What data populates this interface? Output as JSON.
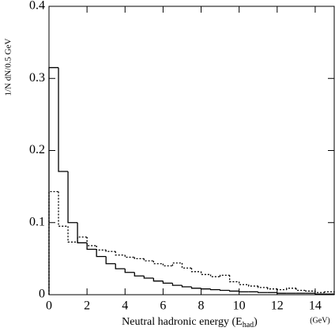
{
  "chart_data": {
    "type": "histogram",
    "y_label": "1/N dN/0.5 GeV",
    "x_label": "Neutral hadronic energy (E",
    "x_label_sub": "had",
    "x_label_end": ")",
    "x_unit": "(GeV)",
    "bins": [
      0,
      0.5,
      1,
      1.5,
      2,
      2.5,
      3,
      3.5,
      4,
      4.5,
      5,
      5.5,
      6,
      6.5,
      7,
      7.5,
      8,
      8.5,
      9,
      9.5,
      10,
      10.5,
      11,
      11.5,
      12,
      12.5,
      13,
      13.5,
      14,
      14.5,
      15
    ],
    "series": [
      {
        "color": "#000000",
        "style": "solid",
        "values": [
          0.315,
          0.171,
          0.1,
          0.072,
          0.063,
          0.053,
          0.043,
          0.036,
          0.031,
          0.026,
          0.023,
          0.019,
          0.016,
          0.013,
          0.011,
          0.009,
          0.008,
          0.007,
          0.006,
          0.005,
          0.004,
          0.004,
          0.003,
          0.003,
          0.002,
          0.002,
          0.002,
          0.002,
          0.001,
          0.001
        ]
      },
      {
        "color": "#000000",
        "style": "dotted",
        "values": [
          0.143,
          0.095,
          0.073,
          0.08,
          0.068,
          0.062,
          0.06,
          0.055,
          0.052,
          0.05,
          0.047,
          0.043,
          0.04,
          0.044,
          0.037,
          0.032,
          0.028,
          0.025,
          0.027,
          0.018,
          0.014,
          0.012,
          0.01,
          0.008,
          0.007,
          0.009,
          0.006,
          0.005,
          0.003,
          0.004
        ]
      }
    ],
    "xlim": [
      0,
      15
    ],
    "xticks": [
      0,
      2,
      4,
      6,
      8,
      10,
      12,
      14
    ],
    "ylim": [
      0,
      0.4
    ],
    "yticks": [
      0,
      0.1,
      0.2,
      0.3,
      0.4
    ]
  }
}
